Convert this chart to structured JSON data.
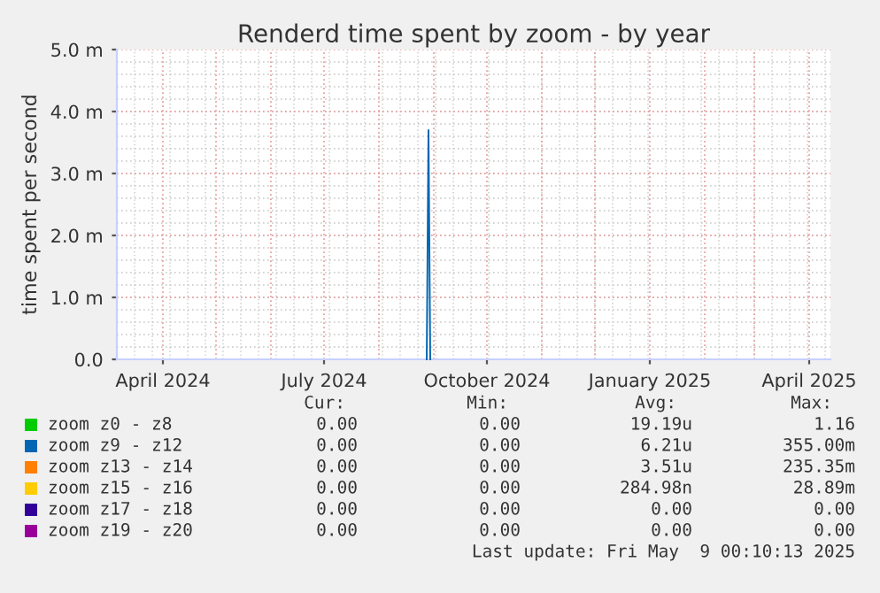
{
  "chart_data": {
    "type": "line",
    "title": "Renderd time spent by zoom - by year",
    "ylabel": "time spent per second",
    "xlim": [
      "2024-03-06",
      "2025-04-13"
    ],
    "xticks": [
      {
        "value": "2024-04-01",
        "label": "April 2024"
      },
      {
        "value": "2024-07-01",
        "label": "July 2024"
      },
      {
        "value": "2024-10-01",
        "label": "October 2024"
      },
      {
        "value": "2025-01-01",
        "label": "January 2025"
      },
      {
        "value": "2025-04-01",
        "label": "April 2025"
      }
    ],
    "ylim": [
      0,
      5
    ],
    "yticks": [
      {
        "value": 0,
        "label": "0.0"
      },
      {
        "value": 1,
        "label": "1.0 m"
      },
      {
        "value": 2,
        "label": "2.0 m"
      },
      {
        "value": 3,
        "label": "3.0 m"
      },
      {
        "value": 4,
        "label": "4.0 m"
      },
      {
        "value": 5,
        "label": "5.0 m"
      }
    ],
    "grid": true,
    "legend": "bottom",
    "series": [
      {
        "name": "zoom z0 - z8",
        "color": "#00cc00"
      },
      {
        "name": "zoom z9 - z12",
        "color": "#0066b3",
        "x": [
          "2024-08-28",
          "2024-08-29",
          "2024-08-30"
        ],
        "values": [
          0,
          3.7,
          0
        ]
      },
      {
        "name": "zoom z13 - z14",
        "color": "#ff8000"
      },
      {
        "name": "zoom z15 - z16",
        "color": "#ffcc00"
      },
      {
        "name": "zoom z17 - z18",
        "color": "#330099"
      },
      {
        "name": "zoom z19 - z20",
        "color": "#990099"
      }
    ],
    "annotations": [
      "Cur:",
      "Min:",
      "Avg:",
      "Max:",
      "0.00",
      "0.00",
      "19.19u",
      "1.16",
      "0.00",
      "0.00",
      "6.21u",
      "355.00m",
      "0.00",
      "0.00",
      "3.51u",
      "235.35m",
      "0.00",
      "0.00",
      "284.98n",
      "28.89m",
      "0.00",
      "0.00",
      "0.00",
      "0.00",
      "0.00",
      "0.00",
      "0.00",
      "0.00",
      "Last update: Fri May  9 00:10:13 2025"
    ]
  }
}
